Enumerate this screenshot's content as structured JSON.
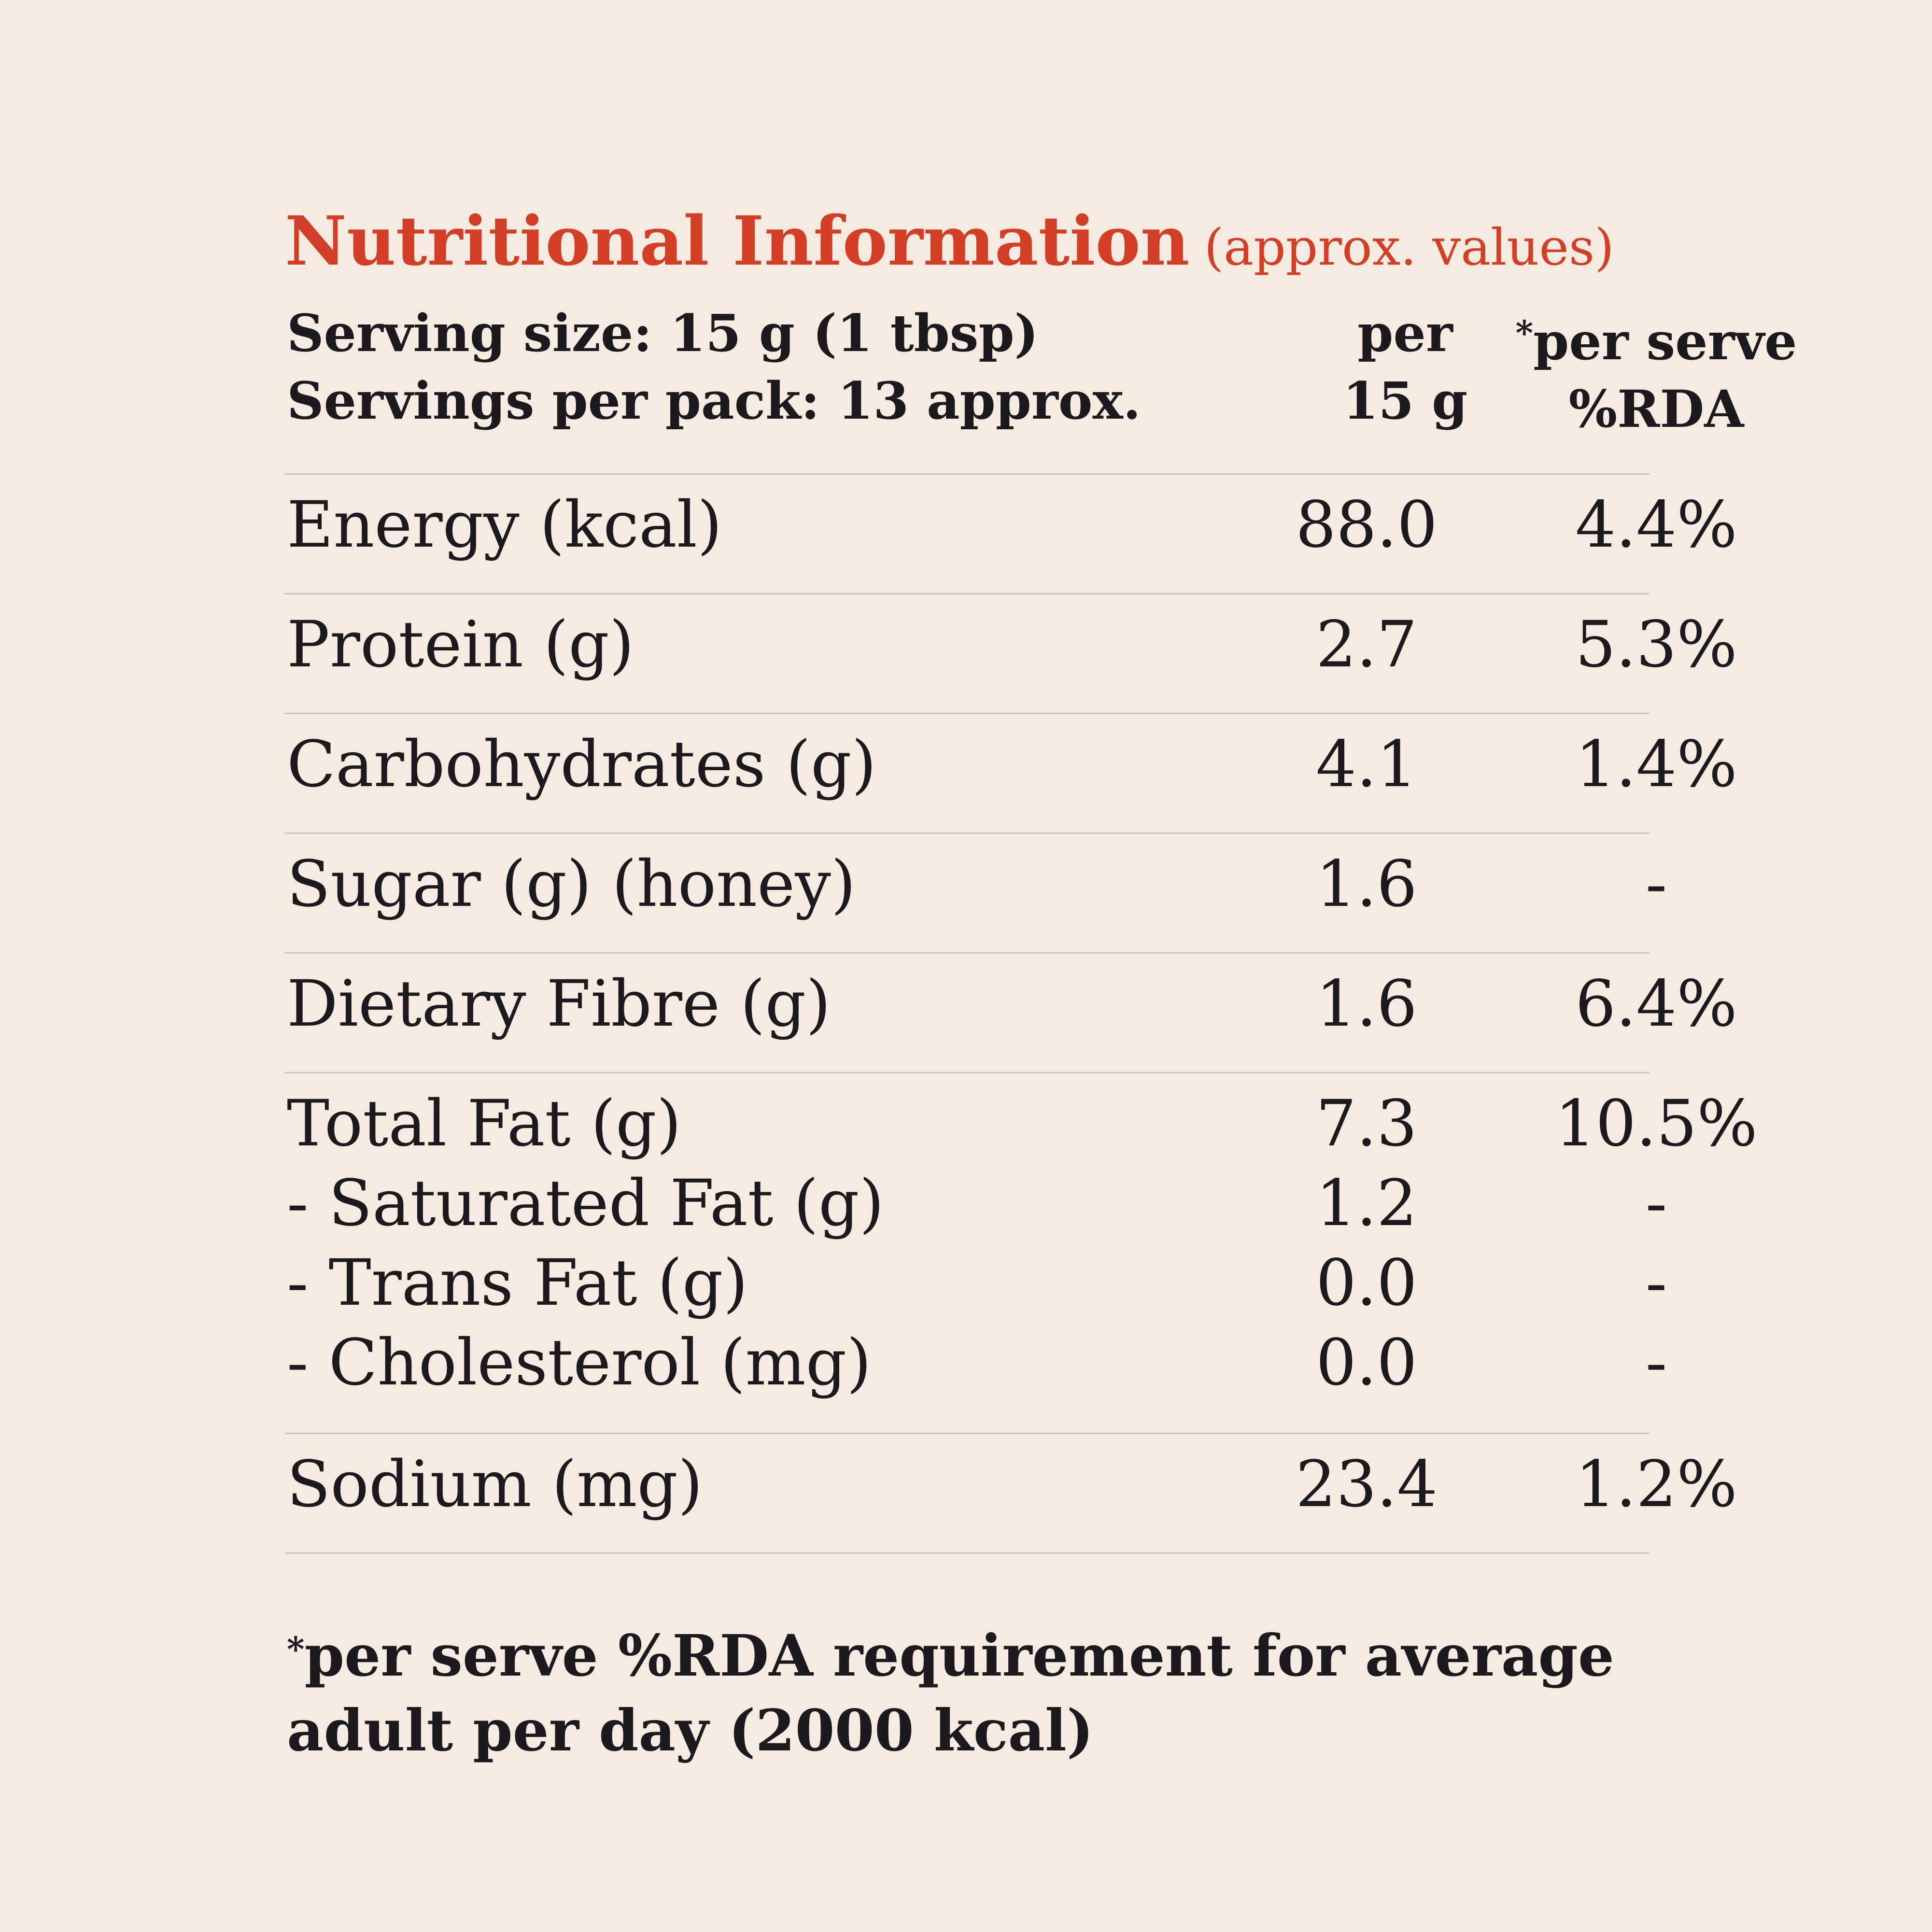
{
  "title": "Nutritional Information",
  "subtitle": "(approx. values)",
  "serving_size": "Serving size: 15 g (1 tbsp)",
  "servings_per_pack": "Servings per pack: 13 approx.",
  "col_per_line1": "per",
  "col_per_line2": "15 g",
  "col_rda_star": "*",
  "col_rda_line1": "per serve",
  "col_rda_line2": "%RDA",
  "rows": [
    {
      "name": "Energy (kcal)",
      "per": "88.0",
      "rda": "4.4%"
    },
    {
      "name": "Protein (g)",
      "per": "2.7",
      "rda": "5.3%"
    },
    {
      "name": "Carbohydrates (g)",
      "per": "4.1",
      "rda": "1.4%"
    },
    {
      "name": "Sugar (g) (honey)",
      "per": "1.6",
      "rda": "-"
    },
    {
      "name": "Dietary Fibre (g)",
      "per": "1.6",
      "rda": "6.4%"
    },
    {
      "name": "Total Fat (g)",
      "per": "7.3",
      "rda": "10.5%"
    },
    {
      "name": "- Saturated Fat (g)",
      "per": "1.2",
      "rda": "-"
    },
    {
      "name": "- Trans Fat (g)",
      "per": "0.0",
      "rda": "-"
    },
    {
      "name": "- Cholesterol (mg)",
      "per": "0.0",
      "rda": "-"
    },
    {
      "name": "Sodium (mg)",
      "per": "23.4",
      "rda": "1.2%"
    }
  ],
  "footnote_star": "*",
  "footnote_line1": "per serve %RDA requirement for average",
  "footnote_line2": "adult per day (2000 kcal)",
  "colors": {
    "background": "#f5ebe1",
    "title": "#d33e26",
    "text": "#1c1a1e",
    "rule": "#cfc4ba"
  }
}
